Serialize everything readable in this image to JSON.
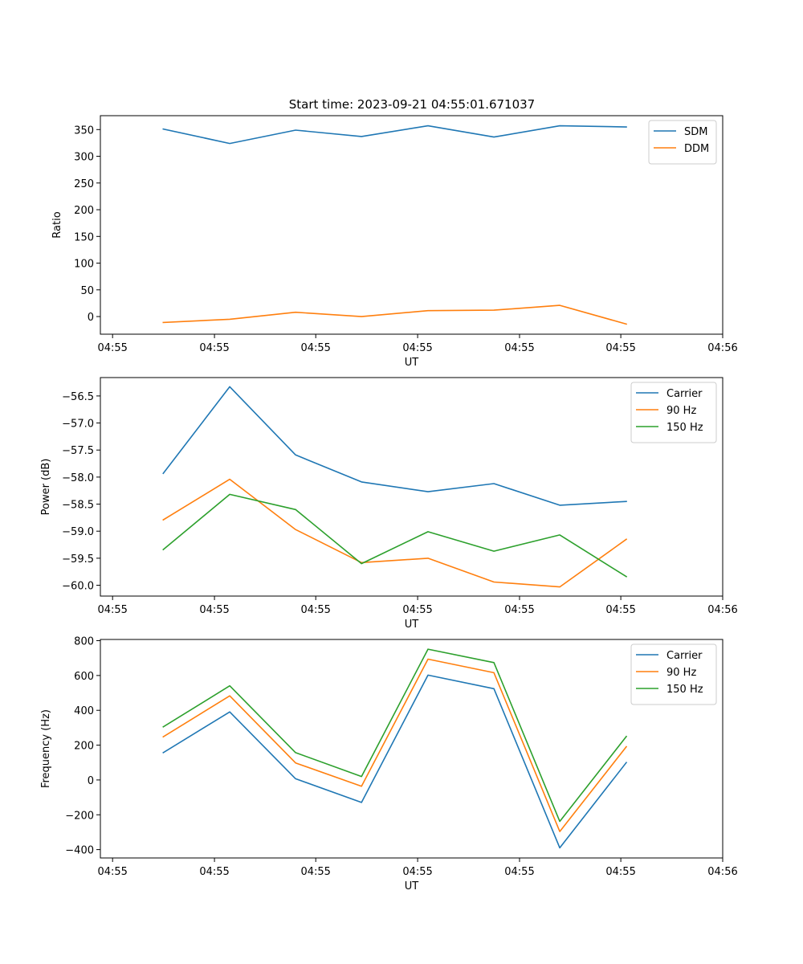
{
  "figure": {
    "title": "Start time: 2023-09-21 04:55:01.671037"
  },
  "chart_data": [
    {
      "type": "line",
      "xlabel": "UT",
      "ylabel": "Ratio",
      "x_ticks": [
        "04:55",
        "04:55",
        "04:55",
        "04:55",
        "04:55",
        "04:55",
        "04:56"
      ],
      "x_tick_pos": [
        0.0,
        1.67,
        3.33,
        5.0,
        6.67,
        8.33,
        10.0
      ],
      "xlim": [
        -0.2,
        10.0
      ],
      "x": [
        0.83,
        1.92,
        3.0,
        4.08,
        5.17,
        6.25,
        7.33,
        8.42
      ],
      "ylim": [
        -33,
        376
      ],
      "y_ticks": [
        0,
        50,
        100,
        150,
        200,
        250,
        300,
        350
      ],
      "legend_position": "top-right",
      "series": [
        {
          "name": "SDM",
          "color": "#1f77b4",
          "values": [
            351,
            324,
            349,
            337,
            357,
            336,
            357,
            355
          ]
        },
        {
          "name": "DDM",
          "color": "#ff7f0e",
          "values": [
            -11,
            -5,
            8,
            0,
            11,
            12,
            21,
            -14
          ]
        }
      ]
    },
    {
      "type": "line",
      "xlabel": "UT",
      "ylabel": "Power (dB)",
      "x_ticks": [
        "04:55",
        "04:55",
        "04:55",
        "04:55",
        "04:55",
        "04:55",
        "04:56"
      ],
      "x_tick_pos": [
        0.0,
        1.67,
        3.33,
        5.0,
        6.67,
        8.33,
        10.0
      ],
      "xlim": [
        -0.2,
        10.0
      ],
      "x": [
        0.83,
        1.92,
        3.0,
        4.08,
        5.17,
        6.25,
        7.33,
        8.42
      ],
      "ylim": [
        -60.2,
        -56.16
      ],
      "y_ticks": [
        -60.0,
        -59.5,
        -59.0,
        -58.5,
        -58.0,
        -57.5,
        -57.0,
        -56.5
      ],
      "y_tick_labels": [
        "−60.0",
        "−59.5",
        "−59.0",
        "−58.5",
        "−58.0",
        "−57.5",
        "−57.0",
        "−56.5"
      ],
      "legend_position": "top-right",
      "series": [
        {
          "name": "Carrier",
          "color": "#1f77b4",
          "values": [
            -57.93,
            -56.33,
            -57.59,
            -58.09,
            -58.27,
            -58.12,
            -58.52,
            -58.45
          ]
        },
        {
          "name": "90 Hz",
          "color": "#ff7f0e",
          "values": [
            -58.79,
            -58.04,
            -58.97,
            -59.58,
            -59.5,
            -59.94,
            -60.03,
            -59.15
          ]
        },
        {
          "name": "150 Hz",
          "color": "#2ca02c",
          "values": [
            -59.34,
            -58.32,
            -58.6,
            -59.6,
            -59.01,
            -59.37,
            -59.07,
            -59.84
          ]
        }
      ]
    },
    {
      "type": "line",
      "xlabel": "UT",
      "ylabel": "Frequency (Hz)",
      "x_ticks": [
        "04:55",
        "04:55",
        "04:55",
        "04:55",
        "04:55",
        "04:55",
        "04:56"
      ],
      "x_tick_pos": [
        0.0,
        1.67,
        3.33,
        5.0,
        6.67,
        8.33,
        10.0
      ],
      "xlim": [
        -0.2,
        10.0
      ],
      "x": [
        0.83,
        1.92,
        3.0,
        4.08,
        5.17,
        6.25,
        7.33,
        8.42
      ],
      "ylim": [
        -448,
        807
      ],
      "y_ticks": [
        -400,
        -200,
        0,
        200,
        400,
        600,
        800
      ],
      "y_tick_labels": [
        "−400",
        "−200",
        "0",
        "200",
        "400",
        "600",
        "800"
      ],
      "legend_position": "top-right",
      "series": [
        {
          "name": "Carrier",
          "color": "#1f77b4",
          "values": [
            157,
            391,
            7,
            -129,
            602,
            524,
            -390,
            100
          ]
        },
        {
          "name": "90 Hz",
          "color": "#ff7f0e",
          "values": [
            248,
            483,
            98,
            -36,
            694,
            616,
            -296,
            191
          ]
        },
        {
          "name": "150 Hz",
          "color": "#2ca02c",
          "values": [
            305,
            541,
            157,
            20,
            751,
            674,
            -238,
            250
          ]
        }
      ]
    }
  ]
}
